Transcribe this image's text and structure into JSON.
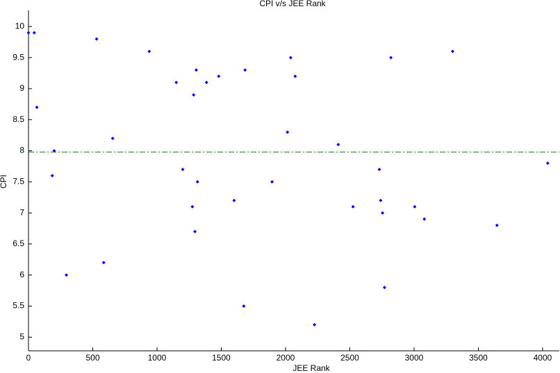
{
  "chart_data": {
    "type": "scatter",
    "title": "CPI v/s JEE Rank",
    "x_label": "JEE Rank",
    "y_label": "CPI",
    "series": [
      {
        "color": "#0000ff",
        "x": [
          0,
          45,
          65,
          530,
          940,
          200,
          185,
          295,
          585,
          655,
          1150,
          1200,
          1285,
          1305,
          1385,
          1480,
          1315,
          1275,
          1295,
          1600,
          1685,
          1675,
          1895,
          2015,
          2040,
          2075,
          2225,
          2410,
          2525,
          2730,
          2740,
          2755,
          2820,
          2770,
          3005,
          3080,
          3300,
          3645,
          4040
        ],
        "values": [
          9.9,
          9.9,
          8.7,
          9.8,
          9.6,
          8.0,
          7.6,
          6.0,
          6.2,
          8.2,
          9.1,
          7.7,
          8.9,
          9.3,
          9.1,
          9.2,
          7.5,
          7.1,
          6.7,
          7.2,
          9.3,
          5.5,
          7.5,
          8.3,
          9.5,
          9.2,
          5.2,
          8.1,
          7.1,
          7.7,
          7.2,
          7.0,
          9.5,
          5.8,
          7.1,
          6.9,
          9.6,
          6.8,
          7.8
        ]
      }
    ],
    "reference_line": {
      "value": 7.98,
      "color": "#007f00",
      "style": "dash-dot"
    },
    "xlim": [
      0,
      4130
    ],
    "xticks": [
      0,
      500,
      1000,
      1500,
      2000,
      2500,
      3000,
      3500,
      4000
    ],
    "ylim": [
      4.78,
      10.26
    ],
    "yticks": [
      5,
      5.5,
      6,
      6.5,
      7,
      7.5,
      8,
      8.5,
      9,
      9.5,
      10
    ]
  }
}
